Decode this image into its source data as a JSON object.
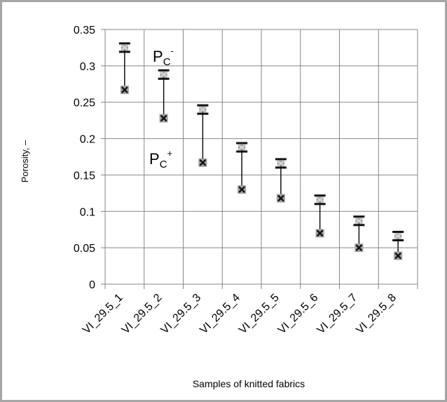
{
  "chart_data": {
    "type": "scatter",
    "subtype": "high-low",
    "xlabel": "Samples of knitted fabrics",
    "ylabel": "Porosity, –",
    "ylim": [
      0,
      0.35
    ],
    "ytick_step": 0.05,
    "grid": true,
    "categories": [
      "VI_29.5_1",
      "VI_29.5_2",
      "VI_29.5_3",
      "VI_29.5_4",
      "VI_29.5_5",
      "VI_29.5_6",
      "VI_29.5_7",
      "VI_29.5_8"
    ],
    "series": [
      {
        "name": "Pc-",
        "values": [
          0.325,
          0.288,
          0.24,
          0.188,
          0.166,
          0.116,
          0.087,
          0.066
        ]
      },
      {
        "name": "Pc+",
        "values": [
          0.267,
          0.228,
          0.167,
          0.13,
          0.118,
          0.07,
          0.05,
          0.039
        ]
      }
    ],
    "annotations": [
      {
        "text": "P",
        "sub": "C",
        "sup": "-"
      },
      {
        "text": "P",
        "sub": "C",
        "sup": "+"
      }
    ]
  }
}
